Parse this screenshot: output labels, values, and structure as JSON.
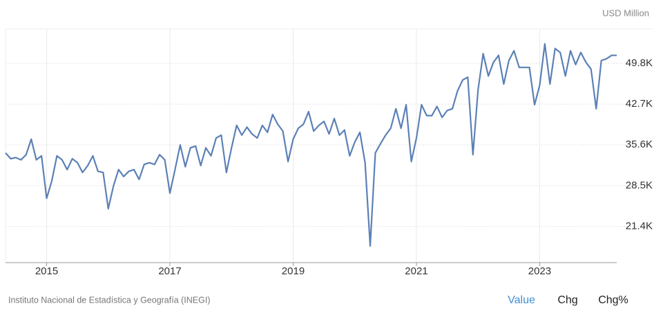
{
  "chart_data": {
    "type": "line",
    "unit": "USD Million",
    "source": "Instituto Nacional de Estadística y Geografía (INEGI)",
    "buttons": [
      "Value",
      "Chg",
      "Chg%"
    ],
    "active_button": 0,
    "grid": true,
    "xlim": [
      2014.333,
      2024.25
    ],
    "xticks": [
      2015,
      2017,
      2019,
      2021,
      2023
    ],
    "ylim": [
      15.1,
      55.8
    ],
    "yticks": [
      {
        "value": 21.4,
        "label": "21.4K"
      },
      {
        "value": 28.5,
        "label": "28.5K"
      },
      {
        "value": 35.6,
        "label": "35.6K"
      },
      {
        "value": 42.7,
        "label": "42.7K"
      },
      {
        "value": 49.8,
        "label": "49.8K"
      }
    ],
    "x": [
      2014.333,
      2014.417,
      2014.5,
      2014.583,
      2014.667,
      2014.75,
      2014.833,
      2014.917,
      2015.0,
      2015.083,
      2015.167,
      2015.25,
      2015.333,
      2015.417,
      2015.5,
      2015.583,
      2015.667,
      2015.75,
      2015.833,
      2015.917,
      2016.0,
      2016.083,
      2016.167,
      2016.25,
      2016.333,
      2016.417,
      2016.5,
      2016.583,
      2016.667,
      2016.75,
      2016.833,
      2016.917,
      2017.0,
      2017.083,
      2017.167,
      2017.25,
      2017.333,
      2017.417,
      2017.5,
      2017.583,
      2017.667,
      2017.75,
      2017.833,
      2017.917,
      2018.0,
      2018.083,
      2018.167,
      2018.25,
      2018.333,
      2018.417,
      2018.5,
      2018.583,
      2018.667,
      2018.75,
      2018.833,
      2018.917,
      2019.0,
      2019.083,
      2019.167,
      2019.25,
      2019.333,
      2019.417,
      2019.5,
      2019.583,
      2019.667,
      2019.75,
      2019.833,
      2019.917,
      2020.0,
      2020.083,
      2020.167,
      2020.25,
      2020.333,
      2020.417,
      2020.5,
      2020.583,
      2020.667,
      2020.75,
      2020.833,
      2020.917,
      2021.0,
      2021.083,
      2021.167,
      2021.25,
      2021.333,
      2021.417,
      2021.5,
      2021.583,
      2021.667,
      2021.75,
      2021.833,
      2021.917,
      2022.0,
      2022.083,
      2022.167,
      2022.25,
      2022.333,
      2022.417,
      2022.5,
      2022.583,
      2022.667,
      2022.75,
      2022.833,
      2022.917,
      2023.0,
      2023.083,
      2023.167,
      2023.25,
      2023.333,
      2023.417,
      2023.5,
      2023.583,
      2023.667,
      2023.75,
      2023.833,
      2023.917,
      2024.0,
      2024.083,
      2024.167,
      2024.25
    ],
    "series": [
      {
        "color": "#5b80b6",
        "values": [
          34.2,
          33.2,
          33.4,
          33.0,
          33.9,
          36.6,
          33.0,
          33.7,
          26.3,
          29.3,
          33.7,
          33.0,
          31.3,
          33.2,
          32.5,
          30.8,
          32.0,
          33.7,
          31.0,
          30.8,
          24.5,
          28.4,
          31.3,
          30.1,
          31.0,
          31.3,
          29.6,
          32.2,
          32.5,
          32.2,
          33.9,
          33.0,
          27.2,
          31.3,
          35.6,
          31.8,
          35.1,
          35.4,
          32.0,
          35.1,
          33.7,
          36.8,
          37.3,
          30.8,
          35.1,
          39.0,
          37.3,
          38.7,
          37.5,
          36.8,
          39.0,
          37.8,
          40.9,
          39.2,
          38.0,
          32.7,
          36.6,
          38.5,
          39.2,
          41.4,
          38.0,
          39.0,
          39.7,
          37.5,
          40.2,
          37.3,
          38.2,
          33.7,
          36.1,
          37.8,
          32.5,
          18.0,
          34.2,
          35.8,
          37.3,
          38.5,
          41.9,
          38.5,
          42.6,
          32.7,
          36.8,
          42.6,
          40.7,
          40.7,
          42.3,
          40.4,
          41.6,
          41.9,
          45.0,
          46.9,
          47.4,
          33.9,
          45.2,
          51.5,
          47.6,
          50.0,
          51.2,
          46.2,
          50.3,
          52.0,
          49.1,
          49.1,
          49.1,
          42.6,
          46.0,
          53.2,
          46.2,
          52.4,
          51.7,
          47.6,
          52.0,
          49.6,
          51.7,
          50.0,
          48.8,
          41.9,
          50.3,
          50.6,
          51.2,
          51.2
        ]
      }
    ]
  }
}
